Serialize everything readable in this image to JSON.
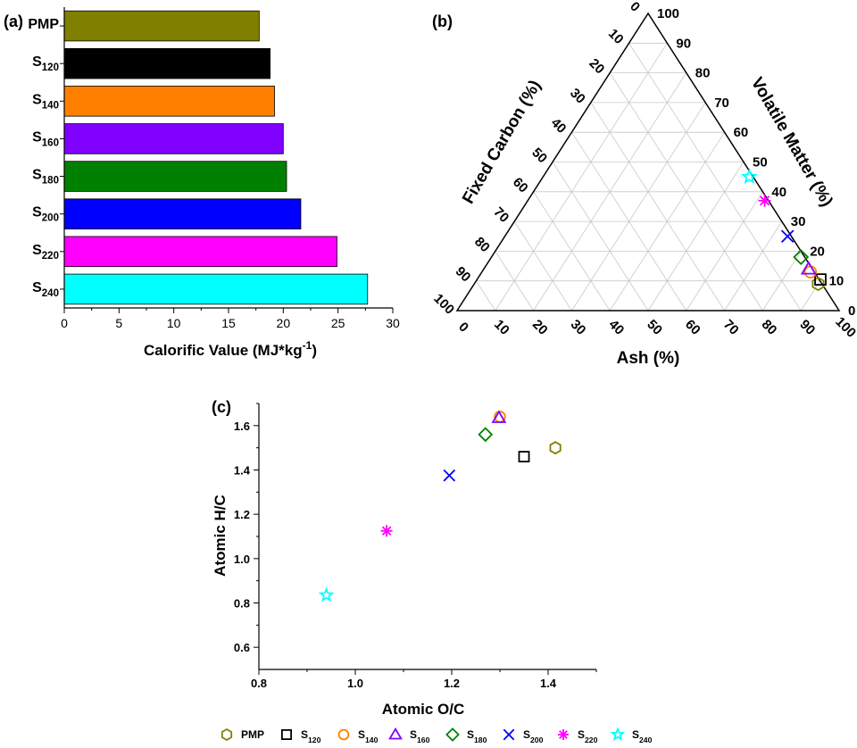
{
  "chart_data": [
    {
      "id": "a",
      "panel_label": "(a)",
      "type": "bar",
      "orientation": "horizontal",
      "categories": [
        {
          "base": "PMP",
          "sub": ""
        },
        {
          "base": "S",
          "sub": "120"
        },
        {
          "base": "S",
          "sub": "140"
        },
        {
          "base": "S",
          "sub": "160"
        },
        {
          "base": "S",
          "sub": "180"
        },
        {
          "base": "S",
          "sub": "200"
        },
        {
          "base": "S",
          "sub": "220"
        },
        {
          "base": "S",
          "sub": "240"
        }
      ],
      "values": [
        17.8,
        18.8,
        19.2,
        20.0,
        20.3,
        21.6,
        24.9,
        27.7
      ],
      "colors": [
        "#808000",
        "#000000",
        "#ff8000",
        "#8000ff",
        "#008000",
        "#0000ff",
        "#ff00ff",
        "#00ffff"
      ],
      "xlabel": {
        "text": "Calorific Value (MJ*kg",
        "sup": "-1",
        "suffix": ")"
      },
      "xlim": [
        0,
        30
      ],
      "xticks": [
        "0",
        "5",
        "10",
        "15",
        "20",
        "25",
        "30"
      ]
    },
    {
      "id": "b",
      "panel_label": "(b)",
      "type": "ternary",
      "axes": {
        "bottom": "Ash (%)",
        "left": "Fixed Carbon (%)",
        "right": "Volatile Matter (%)"
      },
      "ticks": [
        "0",
        "10",
        "20",
        "30",
        "40",
        "50",
        "60",
        "70",
        "80",
        "90",
        "100"
      ],
      "points": [
        {
          "name": "PMP",
          "fixed_carbon": 9,
          "volatile_matter": 90,
          "ash": 1,
          "marker": "hexagon",
          "color": "#808000"
        },
        {
          "name": "S120",
          "fixed_carbon": 11,
          "volatile_matter": 89,
          "ash": 0.5,
          "marker": "square",
          "color": "#000000"
        },
        {
          "name": "S140",
          "fixed_carbon": 13,
          "volatile_matter": 86,
          "ash": 1,
          "marker": "circle",
          "color": "#ff8000"
        },
        {
          "name": "S160",
          "fixed_carbon": 14,
          "volatile_matter": 85,
          "ash": 1,
          "marker": "triangle",
          "color": "#8000ff"
        },
        {
          "name": "S180",
          "fixed_carbon": 18,
          "volatile_matter": 81,
          "ash": 1,
          "marker": "diamond",
          "color": "#008000"
        },
        {
          "name": "S200",
          "fixed_carbon": 25,
          "volatile_matter": 74,
          "ash": 1,
          "marker": "x",
          "color": "#0000ff"
        },
        {
          "name": "S220",
          "fixed_carbon": 37,
          "volatile_matter": 62,
          "ash": 1,
          "marker": "asterisk",
          "color": "#ff00ff"
        },
        {
          "name": "S240",
          "fixed_carbon": 45,
          "volatile_matter": 54,
          "ash": 1,
          "marker": "star",
          "color": "#00ffff"
        }
      ]
    },
    {
      "id": "c",
      "panel_label": "(c)",
      "type": "scatter",
      "xlabel": "Atomic O/C",
      "ylabel": "Atomic H/C",
      "xlim": [
        0.8,
        1.5
      ],
      "ylim": [
        0.5,
        1.7
      ],
      "xticks": [
        "0.8",
        "1.0",
        "1.2",
        "1.4"
      ],
      "yticks": [
        "0.6",
        "0.8",
        "1.0",
        "1.2",
        "1.4",
        "1.6"
      ],
      "points": [
        {
          "name": "PMP",
          "x": 1.415,
          "y": 1.5,
          "marker": "hexagon",
          "color": "#808000"
        },
        {
          "name": "S120",
          "x": 1.35,
          "y": 1.46,
          "marker": "square",
          "color": "#000000"
        },
        {
          "name": "S140",
          "x": 1.3,
          "y": 1.64,
          "marker": "circle",
          "color": "#ff8000"
        },
        {
          "name": "S160",
          "x": 1.298,
          "y": 1.635,
          "marker": "triangle",
          "color": "#8000ff"
        },
        {
          "name": "S180",
          "x": 1.27,
          "y": 1.56,
          "marker": "diamond",
          "color": "#008000"
        },
        {
          "name": "S200",
          "x": 1.195,
          "y": 1.375,
          "marker": "x",
          "color": "#0000ff"
        },
        {
          "name": "S220",
          "x": 1.065,
          "y": 1.125,
          "marker": "asterisk",
          "color": "#ff00ff"
        },
        {
          "name": "S240",
          "x": 0.94,
          "y": 0.835,
          "marker": "star",
          "color": "#00ffff"
        }
      ]
    }
  ],
  "legend": [
    {
      "base": "PMP",
      "sub": "",
      "marker": "hexagon",
      "color": "#808000"
    },
    {
      "base": "S",
      "sub": "120",
      "marker": "square",
      "color": "#000000"
    },
    {
      "base": "S",
      "sub": "140",
      "marker": "circle",
      "color": "#ff8000"
    },
    {
      "base": "S",
      "sub": "160",
      "marker": "triangle",
      "color": "#8000ff"
    },
    {
      "base": "S",
      "sub": "180",
      "marker": "diamond",
      "color": "#008000"
    },
    {
      "base": "S",
      "sub": "200",
      "marker": "x",
      "color": "#0000ff"
    },
    {
      "base": "S",
      "sub": "220",
      "marker": "asterisk",
      "color": "#ff00ff"
    },
    {
      "base": "S",
      "sub": "240",
      "marker": "star",
      "color": "#00ffff"
    }
  ]
}
